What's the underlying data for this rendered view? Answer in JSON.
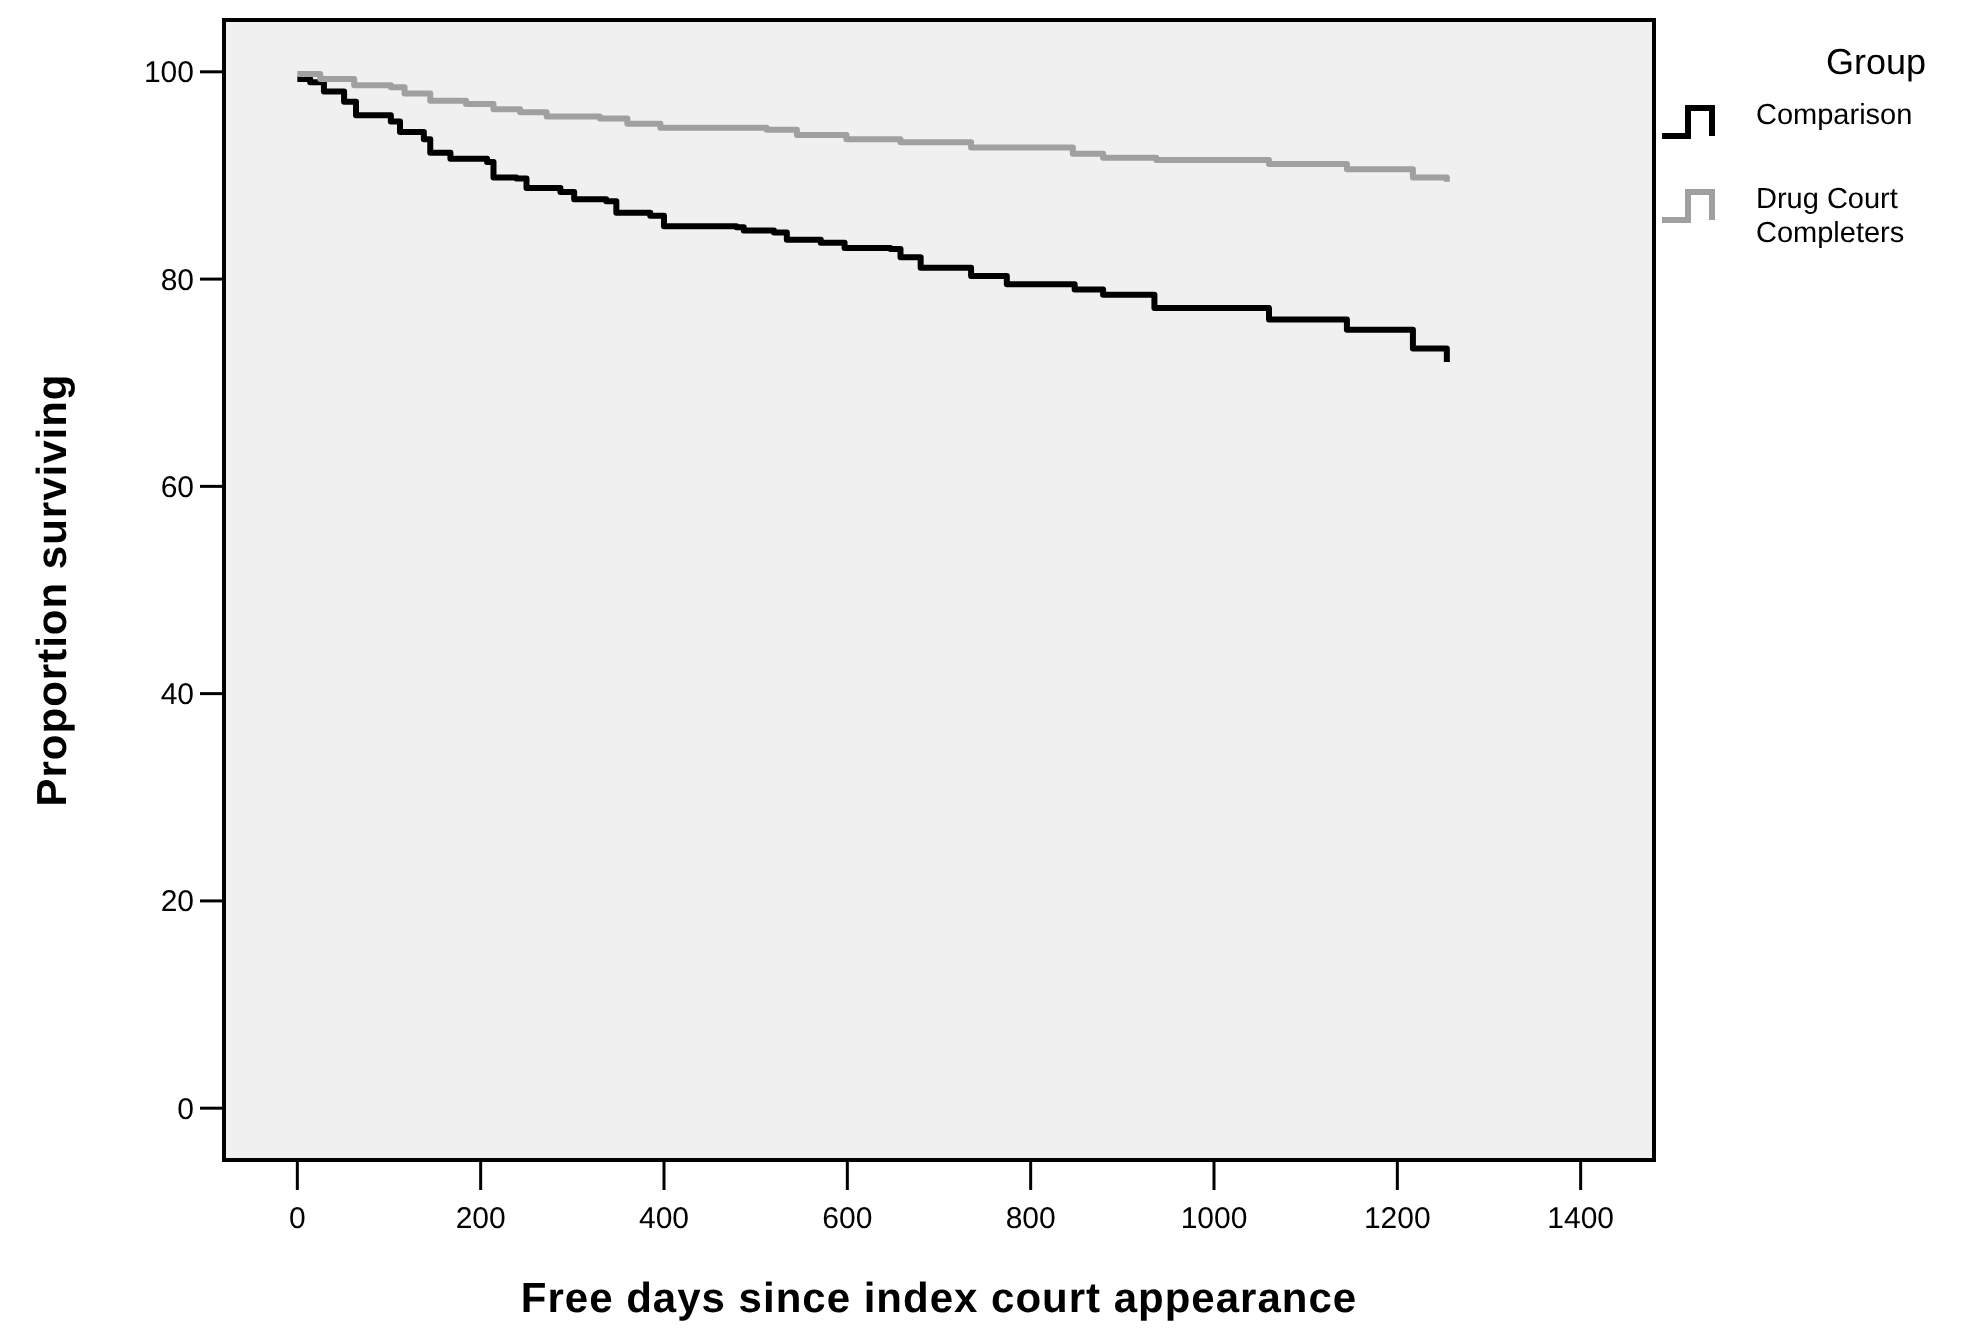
{
  "chart_data": {
    "type": "step",
    "xlabel": "Free days since index court appearance",
    "ylabel": "Proportion surviving",
    "legend_title": "Group",
    "legend": "right",
    "grid": false,
    "marker": "none",
    "line_style": "solid",
    "xlim": [
      -80,
      1480
    ],
    "xticks": [
      0,
      200,
      400,
      600,
      800,
      1000,
      1200,
      1400
    ],
    "ylim": [
      -5,
      105
    ],
    "yticks": [
      0,
      20,
      40,
      60,
      80,
      100
    ],
    "series": [
      {
        "name": "Comparison",
        "color": "#000000",
        "x": [
          0,
          14,
          29,
          51,
          64,
          102,
          112,
          138,
          145,
          167,
          207,
          214,
          239,
          250,
          287,
          302,
          337,
          348,
          385,
          400,
          479,
          487,
          520,
          534,
          571,
          597,
          647,
          658,
          680,
          735,
          774,
          848,
          879,
          935,
          1060,
          1145,
          1217,
          1254
        ],
        "values": [
          99.3,
          99.0,
          98.1,
          97.1,
          95.8,
          95.2,
          94.2,
          93.5,
          92.2,
          91.6,
          91.3,
          89.8,
          89.7,
          88.8,
          88.4,
          87.7,
          87.5,
          86.4,
          86.1,
          85.1,
          85.0,
          84.7,
          84.5,
          83.8,
          83.5,
          83.0,
          82.9,
          82.1,
          81.1,
          80.3,
          79.5,
          79.0,
          78.5,
          77.2,
          76.1,
          75.1,
          73.3,
          72.0
        ]
      },
      {
        "name": "Drug Court Completers",
        "color": "#a0a0a0",
        "x": [
          0,
          25,
          62,
          102,
          117,
          145,
          184,
          214,
          243,
          272,
          330,
          360,
          396,
          512,
          545,
          599,
          658,
          735,
          846,
          879,
          937,
          1060,
          1145,
          1217,
          1254
        ],
        "values": [
          99.8,
          99.3,
          98.7,
          98.5,
          97.9,
          97.2,
          96.9,
          96.4,
          96.1,
          95.7,
          95.5,
          95.0,
          94.6,
          94.4,
          93.9,
          93.5,
          93.2,
          92.7,
          92.1,
          91.7,
          91.5,
          91.1,
          90.6,
          89.8,
          89.4
        ]
      }
    ]
  }
}
